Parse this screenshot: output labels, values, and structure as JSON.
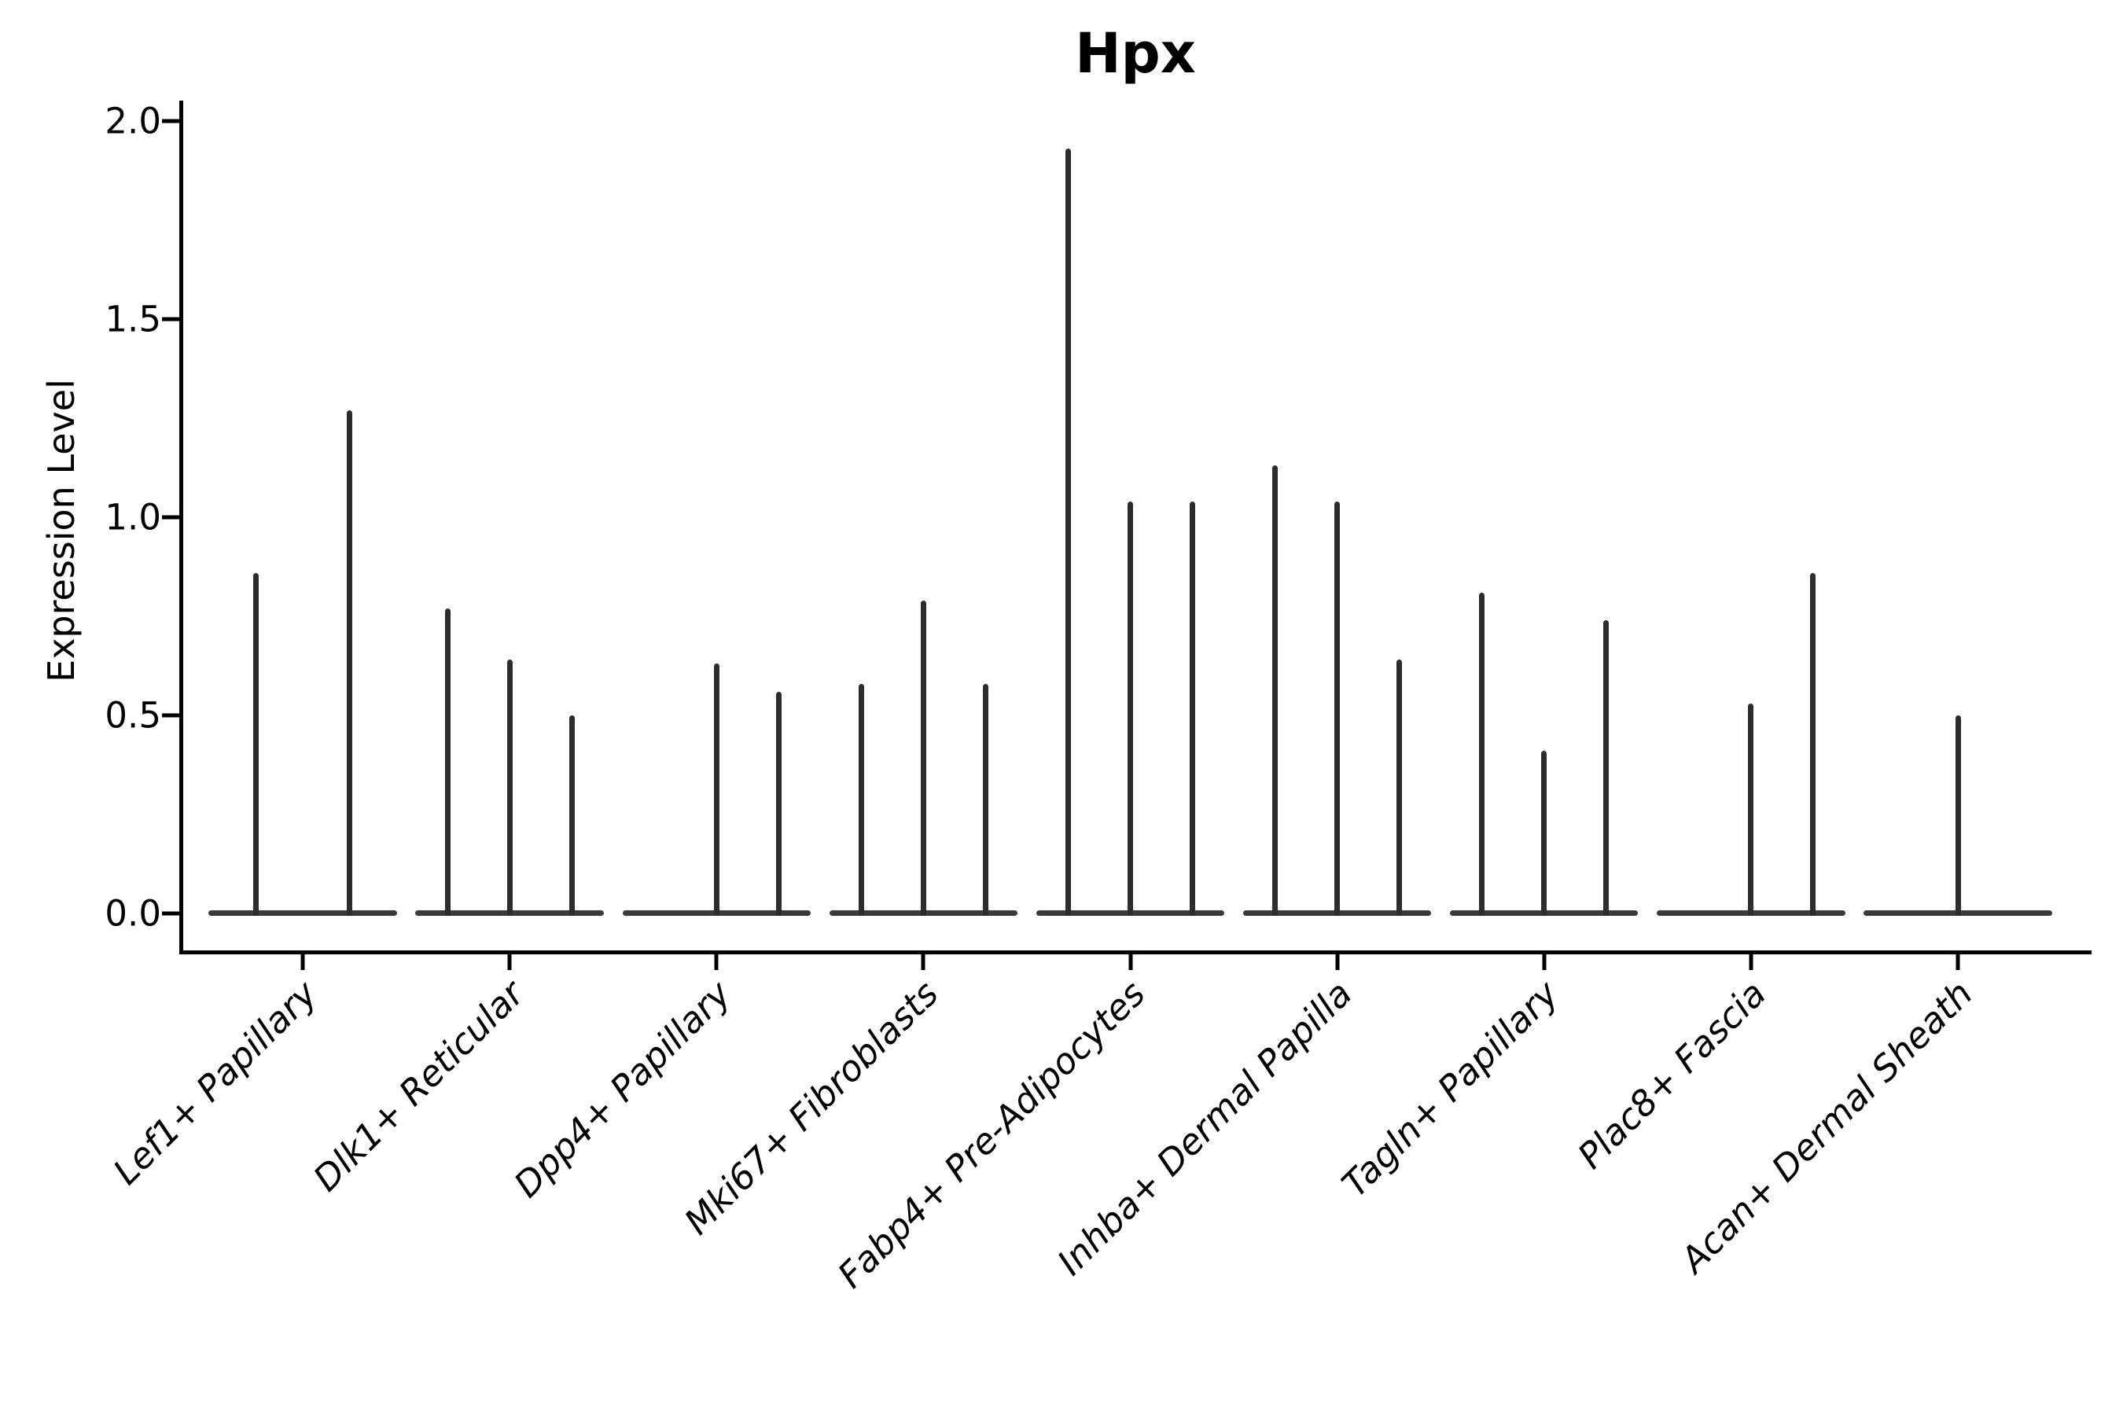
{
  "figure": {
    "title": "Hpx",
    "ylabel": "Expression Level"
  },
  "chart_data": {
    "type": "violin",
    "title": "Hpx",
    "xlabel": "",
    "ylabel": "Expression Level",
    "ylim": [
      -0.095,
      2.05
    ],
    "yticks": [
      0.0,
      0.5,
      1.0,
      1.5,
      2.0
    ],
    "ytick_labels": [
      "0.0",
      "0.5",
      "1.0",
      "1.5",
      "2.0"
    ],
    "grid": false,
    "legend_position": "none",
    "description": "Violin plot of Hpx expression; expression collapses to thin spikes (violin maxima) above a flat zero baseline for each fibroblast cluster.",
    "categories": [
      "Lef1+ Papillary",
      "Dlk1+ Reticular",
      "Dpp4+ Papillary",
      "Mki67+ Fibroblasts",
      "Fabp4+ Pre-Adipocytes",
      "Inhba+ Dermal Papilla",
      "Tagln+ Papillary",
      "Plac8+ Fascia",
      "Acan+ Dermal Sheath"
    ],
    "baseline_value": 0.0,
    "baseline_halfwidth": 0.455,
    "groups": [
      {
        "category": "Lef1+ Papillary",
        "violins": [
          {
            "offset": -0.2275,
            "max": 0.86
          },
          {
            "offset": 0.2275,
            "max": 1.27
          }
        ]
      },
      {
        "category": "Dlk1+ Reticular",
        "violins": [
          {
            "offset": -0.3,
            "max": 0.77
          },
          {
            "offset": 0.0,
            "max": 0.64
          },
          {
            "offset": 0.3,
            "max": 0.5
          }
        ]
      },
      {
        "category": "Dpp4+ Papillary",
        "violins": [
          {
            "offset": 0.0,
            "max": 0.63
          },
          {
            "offset": 0.3,
            "max": 0.56
          }
        ]
      },
      {
        "category": "Mki67+ Fibroblasts",
        "violins": [
          {
            "offset": -0.3,
            "max": 0.58
          },
          {
            "offset": 0.0,
            "max": 0.79
          },
          {
            "offset": 0.3,
            "max": 0.58
          }
        ]
      },
      {
        "category": "Fabp4+ Pre-Adipocytes",
        "violins": [
          {
            "offset": -0.3,
            "max": 1.93
          },
          {
            "offset": 0.0,
            "max": 1.04
          },
          {
            "offset": 0.3,
            "max": 1.04
          }
        ]
      },
      {
        "category": "Inhba+ Dermal Papilla",
        "violins": [
          {
            "offset": -0.3,
            "max": 1.13
          },
          {
            "offset": 0.0,
            "max": 1.04
          },
          {
            "offset": 0.3,
            "max": 0.64
          }
        ]
      },
      {
        "category": "Tagln+ Papillary",
        "violins": [
          {
            "offset": -0.3,
            "max": 0.81
          },
          {
            "offset": 0.0,
            "max": 0.41
          },
          {
            "offset": 0.3,
            "max": 0.74
          }
        ]
      },
      {
        "category": "Plac8+ Fascia",
        "violins": [
          {
            "offset": 0.0,
            "max": 0.53
          },
          {
            "offset": 0.3,
            "max": 0.86
          }
        ]
      },
      {
        "category": "Acan+ Dermal Sheath",
        "violins": [
          {
            "offset": 0.0,
            "max": 0.5
          }
        ]
      }
    ],
    "colors": {
      "spike": "#2d2d2d",
      "baseline": "#3a3a3a",
      "spine": "#000000",
      "text": "#000000",
      "background": "#ffffff"
    }
  }
}
